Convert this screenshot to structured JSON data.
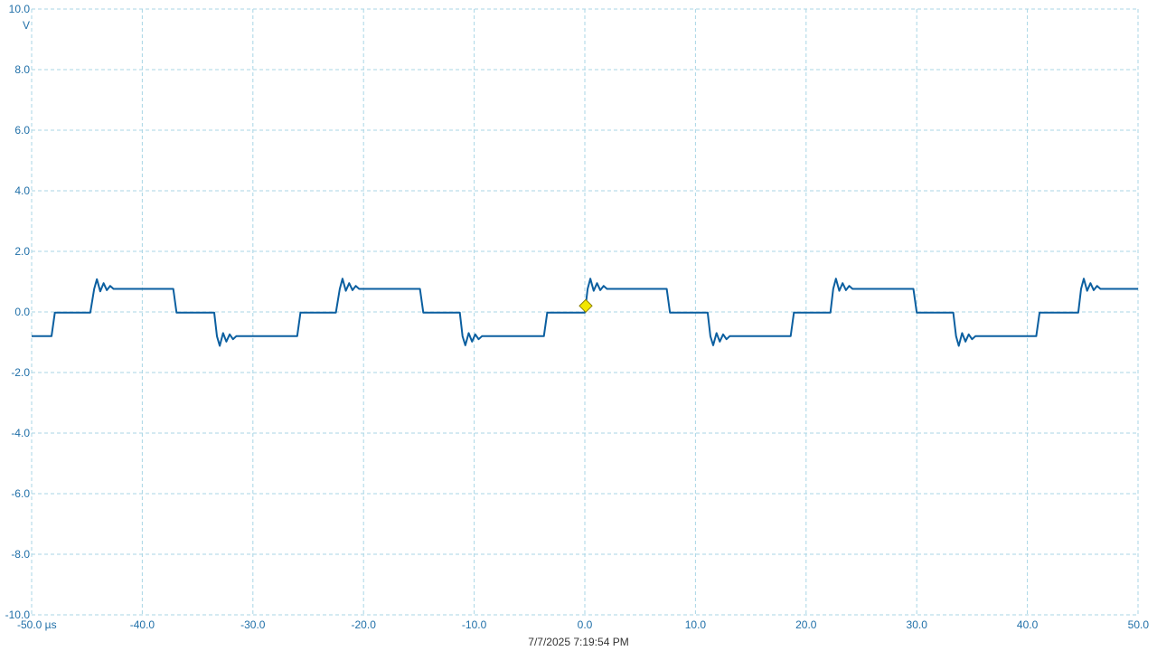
{
  "chart_data": {
    "type": "line",
    "title": "",
    "xlabel": "",
    "ylabel": "",
    "y_unit": "V",
    "x_unit": "µs",
    "xlim": [
      -50.0,
      50.0
    ],
    "ylim": [
      -10.0,
      10.0
    ],
    "grid": true,
    "x_ticks": [
      -50.0,
      -40.0,
      -30.0,
      -20.0,
      -10.0,
      0.0,
      10.0,
      20.0,
      30.0,
      40.0,
      50.0
    ],
    "x_tick_labels": [
      "-50.0 µs",
      "-40.0",
      "-30.0",
      "-20.0",
      "-10.0",
      "0.0",
      "10.0",
      "20.0",
      "30.0",
      "40.0",
      "50.0"
    ],
    "y_ticks": [
      10.0,
      8.0,
      6.0,
      4.0,
      2.0,
      0.0,
      -2.0,
      -4.0,
      -6.0,
      -8.0,
      -10.0
    ],
    "y_tick_labels": [
      "10.0",
      "8.0",
      "6.0",
      "4.0",
      "2.0",
      "0.0",
      "-2.0",
      "-4.0",
      "-6.0",
      "-8.0",
      "-10.0"
    ],
    "trigger_marker": {
      "x": 0.0,
      "y": 0.2,
      "color": "#f2e600"
    },
    "series": [
      {
        "color": "#0b5fa0",
        "points": [
          [
            -50.0,
            -0.8
          ],
          [
            -48.2,
            -0.8
          ],
          [
            -47.9,
            -0.02
          ],
          [
            -44.7,
            -0.02
          ],
          [
            -44.35,
            0.76
          ],
          [
            -44.1,
            1.08
          ],
          [
            -43.8,
            0.68
          ],
          [
            -43.5,
            0.95
          ],
          [
            -43.2,
            0.72
          ],
          [
            -42.9,
            0.86
          ],
          [
            -42.6,
            0.76
          ],
          [
            -37.2,
            0.76
          ],
          [
            -36.9,
            -0.02
          ],
          [
            -33.5,
            -0.02
          ],
          [
            -33.25,
            -0.8
          ],
          [
            -33.0,
            -1.12
          ],
          [
            -32.7,
            -0.7
          ],
          [
            -32.4,
            -0.98
          ],
          [
            -32.1,
            -0.74
          ],
          [
            -31.8,
            -0.9
          ],
          [
            -31.5,
            -0.8
          ],
          [
            -26.0,
            -0.8
          ],
          [
            -25.7,
            -0.02
          ],
          [
            -22.5,
            -0.02
          ],
          [
            -22.15,
            0.76
          ],
          [
            -21.9,
            1.1
          ],
          [
            -21.6,
            0.7
          ],
          [
            -21.3,
            0.95
          ],
          [
            -21.0,
            0.72
          ],
          [
            -20.7,
            0.86
          ],
          [
            -20.4,
            0.76
          ],
          [
            -14.9,
            0.76
          ],
          [
            -14.6,
            -0.02
          ],
          [
            -11.3,
            -0.02
          ],
          [
            -11.05,
            -0.8
          ],
          [
            -10.8,
            -1.1
          ],
          [
            -10.5,
            -0.7
          ],
          [
            -10.2,
            -0.98
          ],
          [
            -9.9,
            -0.74
          ],
          [
            -9.6,
            -0.9
          ],
          [
            -9.3,
            -0.8
          ],
          [
            -3.7,
            -0.8
          ],
          [
            -3.4,
            -0.02
          ],
          [
            0.0,
            -0.02
          ],
          [
            0.25,
            0.76
          ],
          [
            0.5,
            1.1
          ],
          [
            0.8,
            0.7
          ],
          [
            1.1,
            0.95
          ],
          [
            1.4,
            0.72
          ],
          [
            1.7,
            0.86
          ],
          [
            2.0,
            0.76
          ],
          [
            7.4,
            0.76
          ],
          [
            7.7,
            -0.02
          ],
          [
            11.1,
            -0.02
          ],
          [
            11.35,
            -0.8
          ],
          [
            11.6,
            -1.1
          ],
          [
            11.9,
            -0.7
          ],
          [
            12.2,
            -0.98
          ],
          [
            12.5,
            -0.74
          ],
          [
            12.8,
            -0.9
          ],
          [
            13.1,
            -0.8
          ],
          [
            18.6,
            -0.8
          ],
          [
            18.9,
            -0.02
          ],
          [
            22.2,
            -0.02
          ],
          [
            22.45,
            0.76
          ],
          [
            22.7,
            1.1
          ],
          [
            23.0,
            0.7
          ],
          [
            23.3,
            0.95
          ],
          [
            23.6,
            0.72
          ],
          [
            23.9,
            0.86
          ],
          [
            24.2,
            0.76
          ],
          [
            29.7,
            0.76
          ],
          [
            30.0,
            -0.02
          ],
          [
            33.3,
            -0.02
          ],
          [
            33.55,
            -0.8
          ],
          [
            33.8,
            -1.12
          ],
          [
            34.1,
            -0.7
          ],
          [
            34.4,
            -0.98
          ],
          [
            34.7,
            -0.74
          ],
          [
            35.0,
            -0.9
          ],
          [
            35.3,
            -0.8
          ],
          [
            40.8,
            -0.8
          ],
          [
            41.1,
            -0.02
          ],
          [
            44.6,
            -0.02
          ],
          [
            44.85,
            0.76
          ],
          [
            45.1,
            1.1
          ],
          [
            45.4,
            0.7
          ],
          [
            45.7,
            0.95
          ],
          [
            46.0,
            0.72
          ],
          [
            46.3,
            0.86
          ],
          [
            46.6,
            0.76
          ],
          [
            50.0,
            0.76
          ]
        ]
      }
    ]
  },
  "footer": {
    "timestamp": "7/7/2025 7:19:54 PM"
  }
}
